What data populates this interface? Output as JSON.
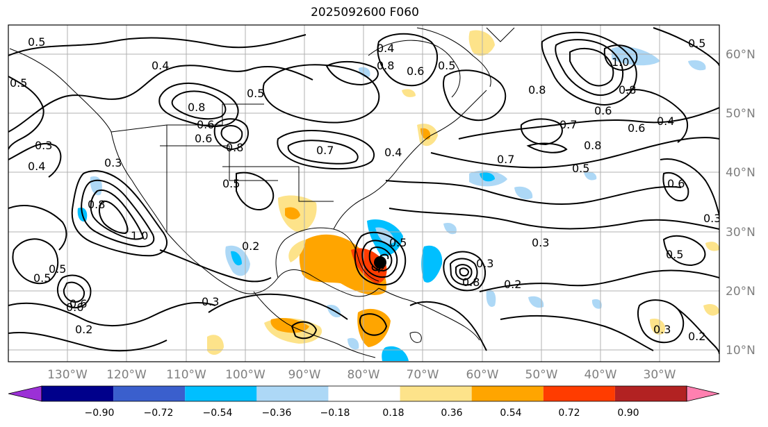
{
  "title": "2025092600 F060",
  "lon_ticks": [
    "130°W",
    "120°W",
    "110°W",
    "100°W",
    "90°W",
    "80°W",
    "70°W",
    "60°W",
    "50°W",
    "40°W",
    "30°W"
  ],
  "lat_ticks": [
    "60°N",
    "50°N",
    "40°N",
    "30°N",
    "20°N",
    "10°N"
  ],
  "colorbar": {
    "levels": [
      "−0.90",
      "−0.72",
      "−0.54",
      "−0.36",
      "−0.18",
      "0.18",
      "0.36",
      "0.54",
      "0.72",
      "0.90"
    ],
    "colors": [
      "#9b30d6",
      "#00008b",
      "#3a5fcd",
      "#00bfff",
      "#add8f6",
      "#ffffff",
      "#fde38a",
      "#ffa500",
      "#ff3c00",
      "#b22222",
      "#ff80b0"
    ]
  },
  "contour_labels": [
    "0.5",
    "0.4",
    "0.5",
    "0.3",
    "0.8",
    "0.6",
    "0.6",
    "0.8",
    "0.5",
    "0.3",
    "0.4",
    "0.8",
    "1.0",
    "0.5",
    "0.5",
    "0.6",
    "0.2",
    "0.4",
    "0.8",
    "0.6",
    "0.5",
    "0.4",
    "0.7",
    "0.5",
    "0.8",
    "1.0",
    "0.8",
    "0.6",
    "0.7",
    "0.6",
    "0.4",
    "0.5",
    "0.7",
    "0.8",
    "0.5",
    "0.6",
    "0.3",
    "0.3",
    "0.2",
    "0.5",
    "0.3",
    "0.2",
    "0.3",
    "0.8",
    "0.3",
    "0.2",
    "0.5",
    "0.6"
  ],
  "hurricane_symbol": "tropical-cyclone-center"
}
